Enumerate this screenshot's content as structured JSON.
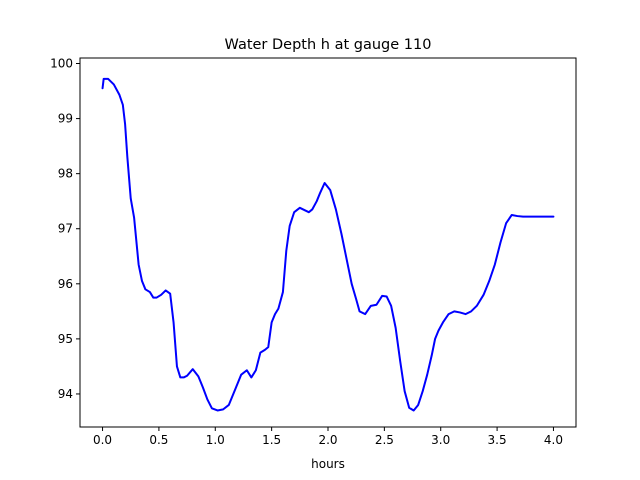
{
  "chart_data": {
    "type": "line",
    "title": "Water Depth h at gauge 110",
    "xlabel": "hours",
    "ylabel": "",
    "xlim": [
      -0.2,
      4.2
    ],
    "ylim": [
      93.4,
      100.1
    ],
    "xticks": [
      0.0,
      0.5,
      1.0,
      1.5,
      2.0,
      2.5,
      3.0,
      3.5,
      4.0
    ],
    "xtick_labels": [
      "0.0",
      "0.5",
      "1.0",
      "1.5",
      "2.0",
      "2.5",
      "3.0",
      "3.5",
      "4.0"
    ],
    "yticks": [
      94,
      95,
      96,
      97,
      98,
      99,
      100
    ],
    "ytick_labels": [
      "94",
      "95",
      "96",
      "97",
      "98",
      "99",
      "100"
    ],
    "grid": false,
    "series": [
      {
        "color": "#0000ff",
        "x": [
          0.0,
          0.01,
          0.05,
          0.1,
          0.15,
          0.18,
          0.2,
          0.22,
          0.25,
          0.28,
          0.32,
          0.35,
          0.38,
          0.42,
          0.45,
          0.48,
          0.52,
          0.56,
          0.6,
          0.63,
          0.66,
          0.69,
          0.72,
          0.75,
          0.8,
          0.85,
          0.89,
          0.93,
          0.97,
          1.02,
          1.07,
          1.12,
          1.18,
          1.23,
          1.28,
          1.32,
          1.36,
          1.4,
          1.44,
          1.47,
          1.5,
          1.53,
          1.56,
          1.6,
          1.63,
          1.66,
          1.7,
          1.75,
          1.8,
          1.83,
          1.86,
          1.9,
          1.93,
          1.97,
          2.02,
          2.07,
          2.12,
          2.17,
          2.21,
          2.25,
          2.28,
          2.33,
          2.38,
          2.43,
          2.48,
          2.52,
          2.56,
          2.6,
          2.64,
          2.68,
          2.72,
          2.76,
          2.8,
          2.84,
          2.88,
          2.92,
          2.95,
          2.98,
          3.02,
          3.07,
          3.12,
          3.17,
          3.22,
          3.27,
          3.32,
          3.38,
          3.43,
          3.48,
          3.53,
          3.58,
          3.63,
          3.68,
          3.73,
          3.78,
          3.83,
          3.87,
          3.91,
          3.94,
          3.97,
          4.0
        ],
        "y": [
          99.55,
          99.72,
          99.72,
          99.62,
          99.43,
          99.25,
          98.9,
          98.3,
          97.55,
          97.2,
          96.35,
          96.05,
          95.9,
          95.85,
          95.75,
          95.75,
          95.8,
          95.88,
          95.82,
          95.3,
          94.5,
          94.3,
          94.3,
          94.33,
          94.45,
          94.32,
          94.12,
          93.9,
          93.74,
          93.7,
          93.72,
          93.8,
          94.1,
          94.35,
          94.43,
          94.3,
          94.43,
          94.75,
          94.8,
          94.85,
          95.3,
          95.45,
          95.55,
          95.85,
          96.6,
          97.05,
          97.3,
          97.38,
          97.33,
          97.3,
          97.35,
          97.5,
          97.65,
          97.83,
          97.7,
          97.35,
          96.9,
          96.4,
          96.0,
          95.72,
          95.5,
          95.45,
          95.6,
          95.62,
          95.78,
          95.77,
          95.6,
          95.2,
          94.6,
          94.05,
          93.75,
          93.7,
          93.8,
          94.05,
          94.35,
          94.7,
          95.0,
          95.15,
          95.3,
          95.45,
          95.5,
          95.48,
          95.45,
          95.5,
          95.6,
          95.8,
          96.05,
          96.35,
          96.75,
          97.1,
          97.25,
          97.23,
          97.22,
          97.22,
          97.22,
          97.22,
          97.22,
          97.22,
          97.22,
          97.22
        ]
      }
    ]
  }
}
